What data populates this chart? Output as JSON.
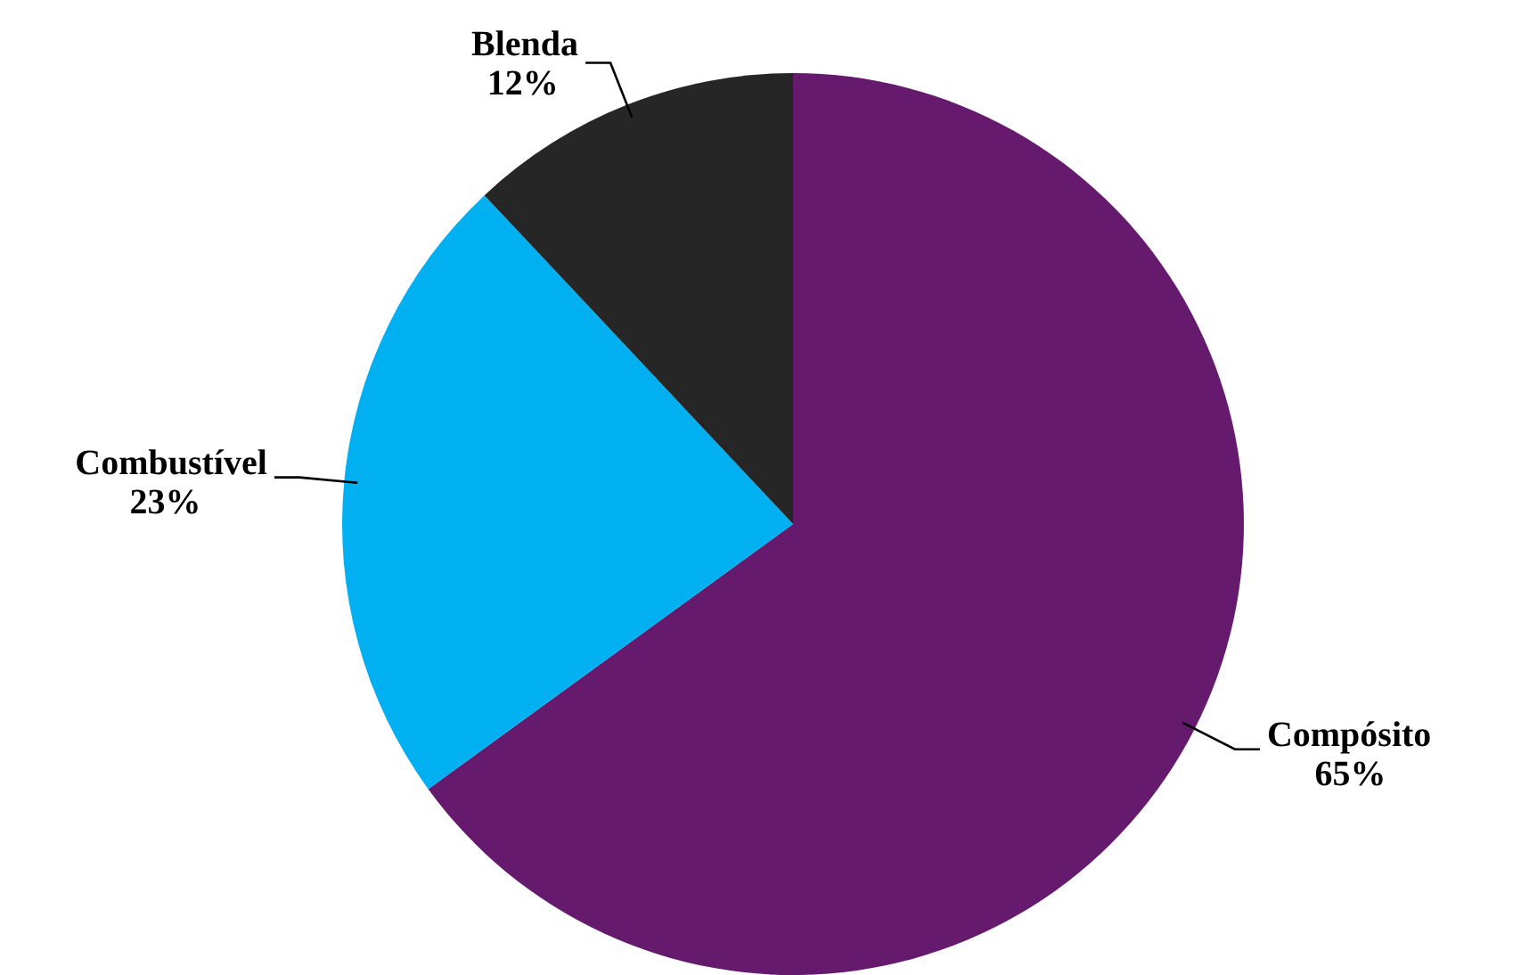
{
  "chart_data": {
    "type": "pie",
    "categories": [
      "Compósito",
      "Combustível",
      "Blenda"
    ],
    "values": [
      65,
      23,
      12
    ],
    "colors": [
      "#651a6e",
      "#00b0f0",
      "#262626"
    ],
    "value_labels": [
      "65%",
      "23%",
      "12%"
    ]
  }
}
